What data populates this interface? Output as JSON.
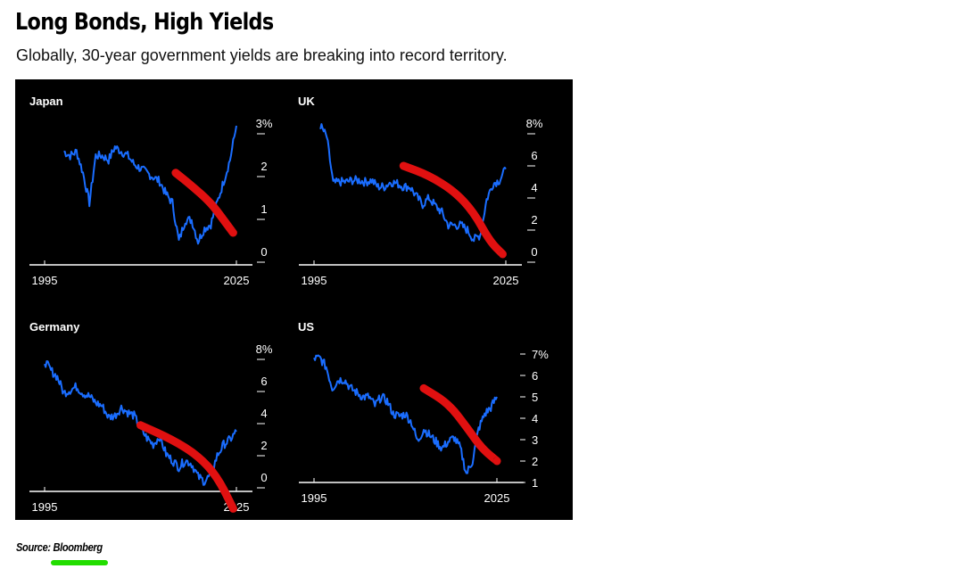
{
  "title": "Long Bonds, High Yields",
  "subtitle": "Globally, 30-year government yields are breaking into record territory.",
  "source": "Source: Bloomberg",
  "colors": {
    "background": "#000000",
    "line": "#1a6dff",
    "annotation": "#e01010",
    "text": "#ffffff",
    "underline": "#22dd00"
  },
  "chart_data": [
    {
      "type": "line",
      "title": "Japan",
      "xlim": [
        1995,
        2025
      ],
      "x_ticks": [
        "1995",
        "2025"
      ],
      "ylim": [
        0,
        3
      ],
      "y_ticks": [
        "3%",
        "2",
        "1",
        "0"
      ],
      "axis_side": "right",
      "series": [
        {
          "x": [
            1998,
            1999,
            2000,
            2001,
            2002,
            2003,
            2004,
            2005,
            2006,
            2007,
            2008,
            2009,
            2010,
            2011,
            2012,
            2013,
            2014,
            2015,
            2016,
            2017,
            2018,
            2019,
            2020,
            2021,
            2022,
            2023,
            2024,
            2025
          ],
          "values": [
            2.4,
            2.3,
            2.4,
            1.9,
            1.2,
            2.3,
            2.3,
            2.2,
            2.5,
            2.4,
            2.3,
            2.1,
            2.0,
            1.9,
            1.8,
            1.7,
            1.4,
            1.2,
            0.3,
            0.8,
            0.8,
            0.3,
            0.6,
            0.7,
            1.2,
            1.7,
            2.2,
            3.0
          ]
        }
      ],
      "annotation": {
        "color": "#e01010",
        "points": [
          [
            2015.5,
            1.9
          ],
          [
            2018,
            1.6
          ],
          [
            2021,
            1.2
          ],
          [
            2023,
            0.8
          ],
          [
            2024.5,
            0.5
          ]
        ]
      }
    },
    {
      "type": "line",
      "title": "UK",
      "xlim": [
        1995,
        2025
      ],
      "x_ticks": [
        "1995",
        "2025"
      ],
      "ylim": [
        0,
        8
      ],
      "y_ticks": [
        "8%",
        "6",
        "4",
        "2",
        "0"
      ],
      "axis_side": "right",
      "series": [
        {
          "x": [
            1996,
            1997,
            1998,
            1999,
            2000,
            2001,
            2002,
            2003,
            2004,
            2005,
            2006,
            2007,
            2008,
            2009,
            2010,
            2011,
            2012,
            2013,
            2014,
            2015,
            2016,
            2017,
            2018,
            2019,
            2020,
            2021,
            2022,
            2023,
            2024,
            2025
          ],
          "values": [
            8.0,
            7.3,
            4.4,
            4.5,
            4.5,
            4.6,
            4.6,
            4.5,
            4.6,
            4.2,
            4.2,
            4.5,
            4.4,
            4.2,
            4.2,
            3.6,
            3.1,
            3.5,
            3.0,
            2.6,
            1.8,
            1.8,
            1.8,
            1.5,
            0.9,
            1.2,
            3.4,
            4.4,
            4.6,
            5.3
          ]
        }
      ],
      "annotation": {
        "color": "#e01010",
        "points": [
          [
            2009,
            5.5
          ],
          [
            2013,
            4.9
          ],
          [
            2017,
            3.9
          ],
          [
            2020,
            2.6
          ],
          [
            2022.5,
            0.8
          ],
          [
            2024.5,
            0.0
          ]
        ]
      }
    },
    {
      "type": "line",
      "title": "Germany",
      "xlim": [
        1995,
        2025
      ],
      "x_ticks": [
        "1995",
        "2025"
      ],
      "ylim": [
        0,
        8
      ],
      "y_ticks": [
        "8%",
        "6",
        "4",
        "2",
        "0"
      ],
      "axis_side": "right",
      "series": [
        {
          "x": [
            1995,
            1996,
            1997,
            1998,
            1999,
            2000,
            2001,
            2002,
            2003,
            2004,
            2005,
            2006,
            2007,
            2008,
            2009,
            2010,
            2011,
            2012,
            2013,
            2014,
            2015,
            2016,
            2017,
            2018,
            2019,
            2020,
            2021,
            2022,
            2023,
            2024,
            2025
          ],
          "values": [
            7.4,
            6.8,
            6.4,
            5.4,
            5.6,
            5.8,
            5.4,
            5.2,
            4.8,
            4.6,
            3.9,
            4.0,
            4.5,
            4.2,
            4.0,
            3.2,
            2.6,
            2.2,
            2.7,
            1.6,
            1.2,
            0.8,
            1.2,
            1.0,
            0.2,
            -0.1,
            0.3,
            1.5,
            2.2,
            2.5,
            3.0
          ]
        }
      ],
      "annotation": {
        "color": "#e01010",
        "points": [
          [
            2010,
            3.4
          ],
          [
            2015,
            2.5
          ],
          [
            2019,
            1.5
          ],
          [
            2022,
            0.2
          ],
          [
            2024.5,
            -1.8
          ]
        ]
      }
    },
    {
      "type": "line",
      "title": "US",
      "xlim": [
        1995,
        2025
      ],
      "x_ticks": [
        "1995",
        "2025"
      ],
      "ylim": [
        1,
        7
      ],
      "y_ticks": [
        "7%",
        "6",
        "5",
        "4",
        "3",
        "2",
        "1"
      ],
      "axis_side": "right",
      "series": [
        {
          "x": [
            1995,
            1996,
            1997,
            1998,
            1999,
            2000,
            2001,
            2002,
            2003,
            2004,
            2005,
            2006,
            2007,
            2008,
            2009,
            2010,
            2011,
            2012,
            2013,
            2014,
            2015,
            2016,
            2017,
            2018,
            2019,
            2020,
            2021,
            2022,
            2023,
            2024,
            2025
          ],
          "values": [
            6.8,
            6.8,
            6.4,
            5.4,
            5.8,
            5.8,
            5.4,
            5.2,
            5.0,
            5.0,
            4.6,
            5.0,
            4.8,
            4.2,
            4.1,
            4.2,
            3.8,
            2.9,
            3.5,
            3.2,
            2.9,
            2.6,
            2.9,
            3.1,
            2.6,
            1.4,
            2.0,
            3.5,
            4.2,
            4.5,
            5.0
          ]
        }
      ],
      "annotation": {
        "color": "#e01010",
        "points": [
          [
            2013,
            5.4
          ],
          [
            2017,
            4.7
          ],
          [
            2020,
            3.6
          ],
          [
            2022.5,
            2.6
          ],
          [
            2025,
            2.0
          ]
        ]
      }
    }
  ]
}
